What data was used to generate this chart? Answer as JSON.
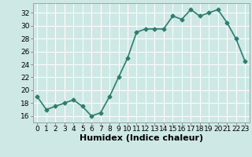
{
  "x": [
    0,
    1,
    2,
    3,
    4,
    5,
    6,
    7,
    8,
    9,
    10,
    11,
    12,
    13,
    14,
    15,
    16,
    17,
    18,
    19,
    20,
    21,
    22,
    23
  ],
  "y": [
    19,
    17,
    17.5,
    18,
    18.5,
    17.5,
    16,
    16.5,
    19,
    22,
    25,
    29,
    29.5,
    29.5,
    29.5,
    31.5,
    31,
    32.5,
    31.5,
    32,
    32.5,
    30.5,
    28,
    24.5
  ],
  "line_color": "#2e7d6e",
  "marker": "D",
  "marker_size": 2.5,
  "bg_color": "#cde8e5",
  "grid_color": "#ffffff",
  "xlabel": "Humidex (Indice chaleur)",
  "ylim": [
    15,
    33.5
  ],
  "xlim": [
    -0.5,
    23.5
  ],
  "yticks": [
    16,
    18,
    20,
    22,
    24,
    26,
    28,
    30,
    32
  ],
  "xticks": [
    0,
    1,
    2,
    3,
    4,
    5,
    6,
    7,
    8,
    9,
    10,
    11,
    12,
    13,
    14,
    15,
    16,
    17,
    18,
    19,
    20,
    21,
    22,
    23
  ],
  "tick_fontsize": 6.5,
  "xlabel_fontsize": 8,
  "linewidth": 1.2
}
